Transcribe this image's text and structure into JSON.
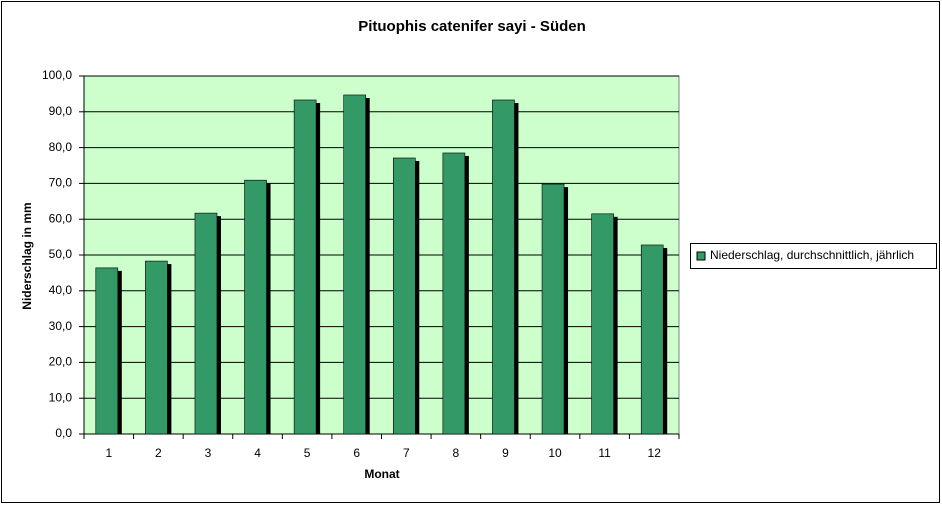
{
  "chart_data": {
    "type": "bar",
    "title": "Pituophis catenifer sayi - Süden",
    "x_label": "Monat",
    "y_label": "Niderschlag in mm",
    "categories": [
      "1",
      "2",
      "3",
      "4",
      "5",
      "6",
      "7",
      "8",
      "9",
      "10",
      "11",
      "12"
    ],
    "series": [
      {
        "name": "Niederschlag, durchschnittlich, jährlich",
        "color": "#339966",
        "values": [
          46.4,
          48.3,
          61.7,
          70.9,
          93.3,
          94.7,
          77.1,
          78.5,
          93.3,
          69.8,
          61.5,
          52.8
        ]
      }
    ],
    "ylim": [
      0,
      100
    ],
    "yticks": [
      {
        "value": 0,
        "label": "0,0"
      },
      {
        "value": 10,
        "label": "10,0"
      },
      {
        "value": 20,
        "label": "20,0"
      },
      {
        "value": 30,
        "label": "30,0"
      },
      {
        "value": 40,
        "label": "40,0"
      },
      {
        "value": 50,
        "label": "50,0"
      },
      {
        "value": 60,
        "label": "60,0"
      },
      {
        "value": 70,
        "label": "70,0"
      },
      {
        "value": 80,
        "label": "80,0"
      },
      {
        "value": 90,
        "label": "90,0"
      },
      {
        "value": 100,
        "label": "100,0"
      }
    ],
    "grid": true,
    "plot_background": "#ccffcc",
    "legend_position": "right"
  }
}
